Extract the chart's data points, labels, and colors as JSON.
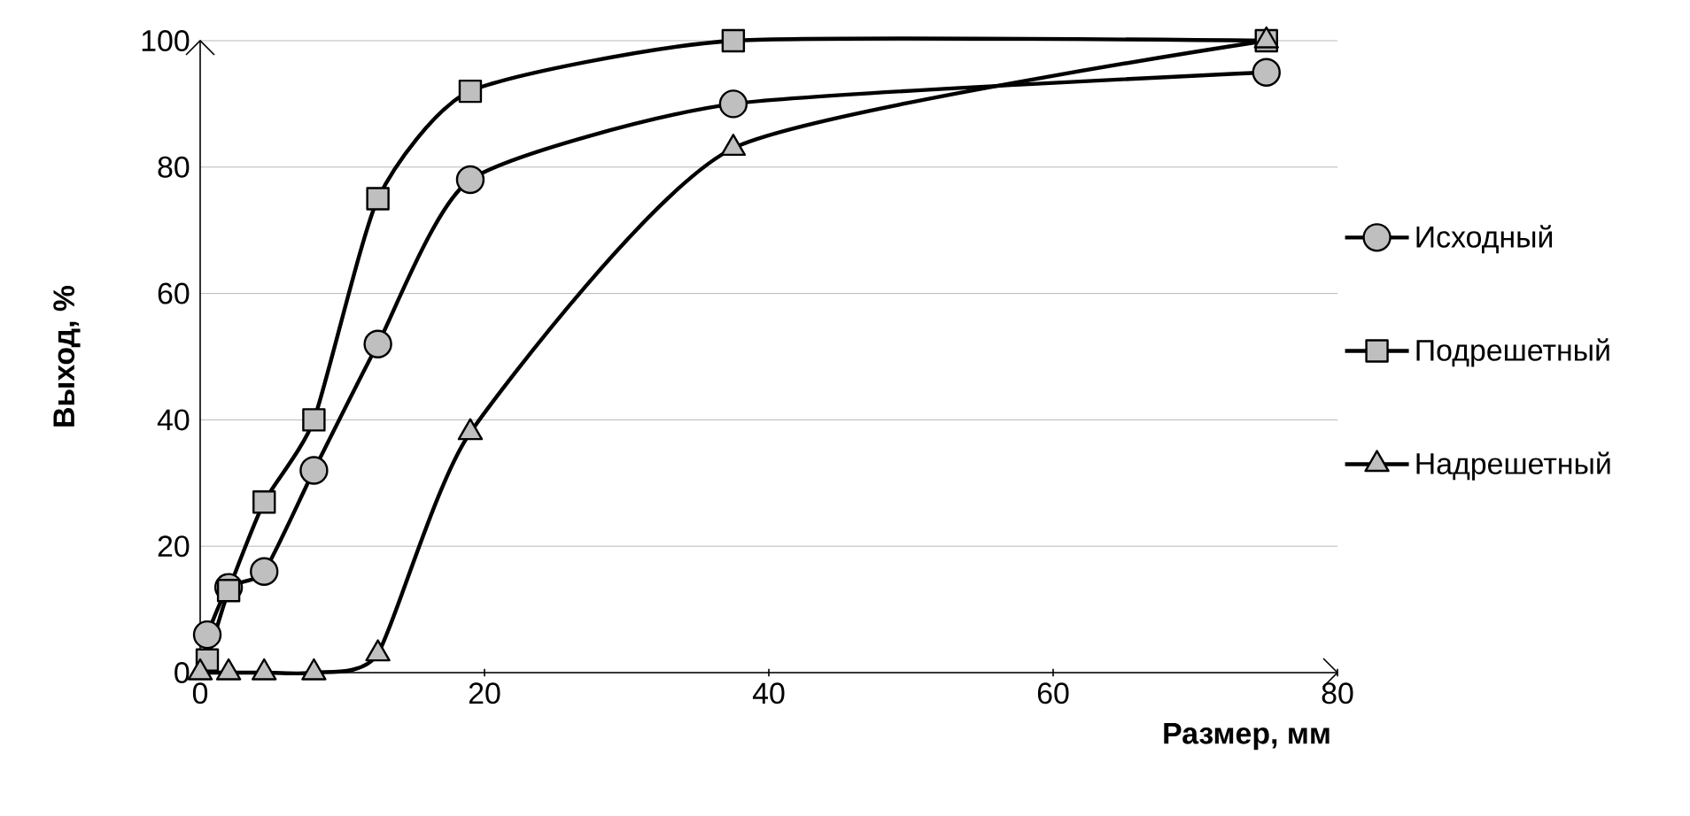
{
  "chart_data": {
    "type": "line",
    "xlabel": "Размер, мм",
    "ylabel": "Выход, %",
    "xlim": [
      0,
      80
    ],
    "ylim": [
      0,
      100
    ],
    "xticks": [
      0,
      20,
      40,
      60,
      80
    ],
    "yticks": [
      0,
      20,
      40,
      60,
      80,
      100
    ],
    "grid": "y",
    "legend": "right",
    "line_style": "solid",
    "series": [
      {
        "name": "Исходный",
        "color": "#000000",
        "marker": "circle",
        "x": [
          0.5,
          2,
          4.5,
          8,
          12.5,
          19,
          37.5,
          75
        ],
        "values": [
          6,
          13.5,
          16,
          32,
          52,
          78,
          90,
          95
        ]
      },
      {
        "name": "Подрешетный",
        "color": "#000000",
        "marker": "square",
        "x": [
          0.5,
          2,
          4.5,
          8,
          12.5,
          19,
          37.5,
          75
        ],
        "values": [
          2,
          13,
          27,
          40,
          75,
          92,
          100,
          100
        ]
      },
      {
        "name": "Надрешетный",
        "color": "#000000",
        "marker": "triangle",
        "x": [
          0,
          2,
          4.5,
          8,
          12.5,
          19,
          37.5,
          75
        ],
        "values": [
          0,
          0,
          0,
          0,
          3,
          38,
          83,
          100
        ]
      }
    ]
  }
}
